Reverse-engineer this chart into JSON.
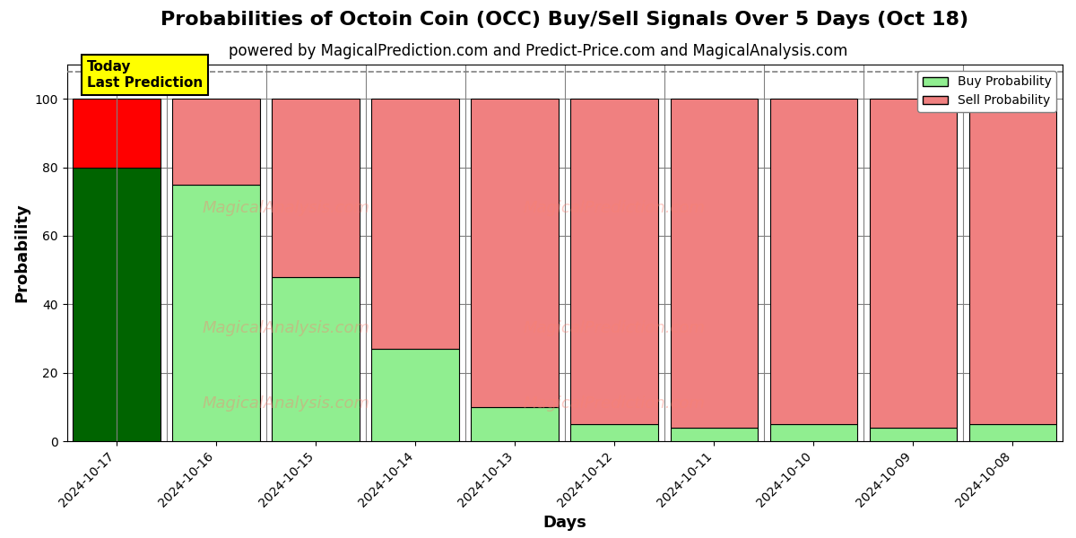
{
  "title": "Probabilities of Octoin Coin (OCC) Buy/Sell Signals Over 5 Days (Oct 18)",
  "subtitle": "powered by MagicalPrediction.com and Predict-Price.com and MagicalAnalysis.com",
  "xlabel": "Days",
  "ylabel": "Probability",
  "categories": [
    "2024-10-17",
    "2024-10-16",
    "2024-10-15",
    "2024-10-14",
    "2024-10-13",
    "2024-10-12",
    "2024-10-11",
    "2024-10-10",
    "2024-10-09",
    "2024-10-08"
  ],
  "buy_values": [
    80,
    75,
    48,
    27,
    10,
    5,
    4,
    5,
    4,
    5
  ],
  "sell_values": [
    20,
    25,
    52,
    73,
    90,
    95,
    96,
    95,
    96,
    95
  ],
  "today_buy_color": "#006400",
  "today_sell_color": "#FF0000",
  "buy_color": "#90EE90",
  "sell_color": "#F08080",
  "today_annotation_bg": "#FFFF00",
  "today_annotation_text": "Today\nLast Prediction",
  "ylim": [
    0,
    110
  ],
  "yticks": [
    0,
    20,
    40,
    60,
    80,
    100
  ],
  "dashed_line_y": 108,
  "legend_buy_label": "Buy Probability",
  "legend_sell_label": "Sell Probability",
  "bar_width": 0.88,
  "title_fontsize": 16,
  "subtitle_fontsize": 12,
  "axis_label_fontsize": 13,
  "bg_color": "#ffffff",
  "watermark_color": "lightcoral",
  "watermark_alpha": 0.35
}
